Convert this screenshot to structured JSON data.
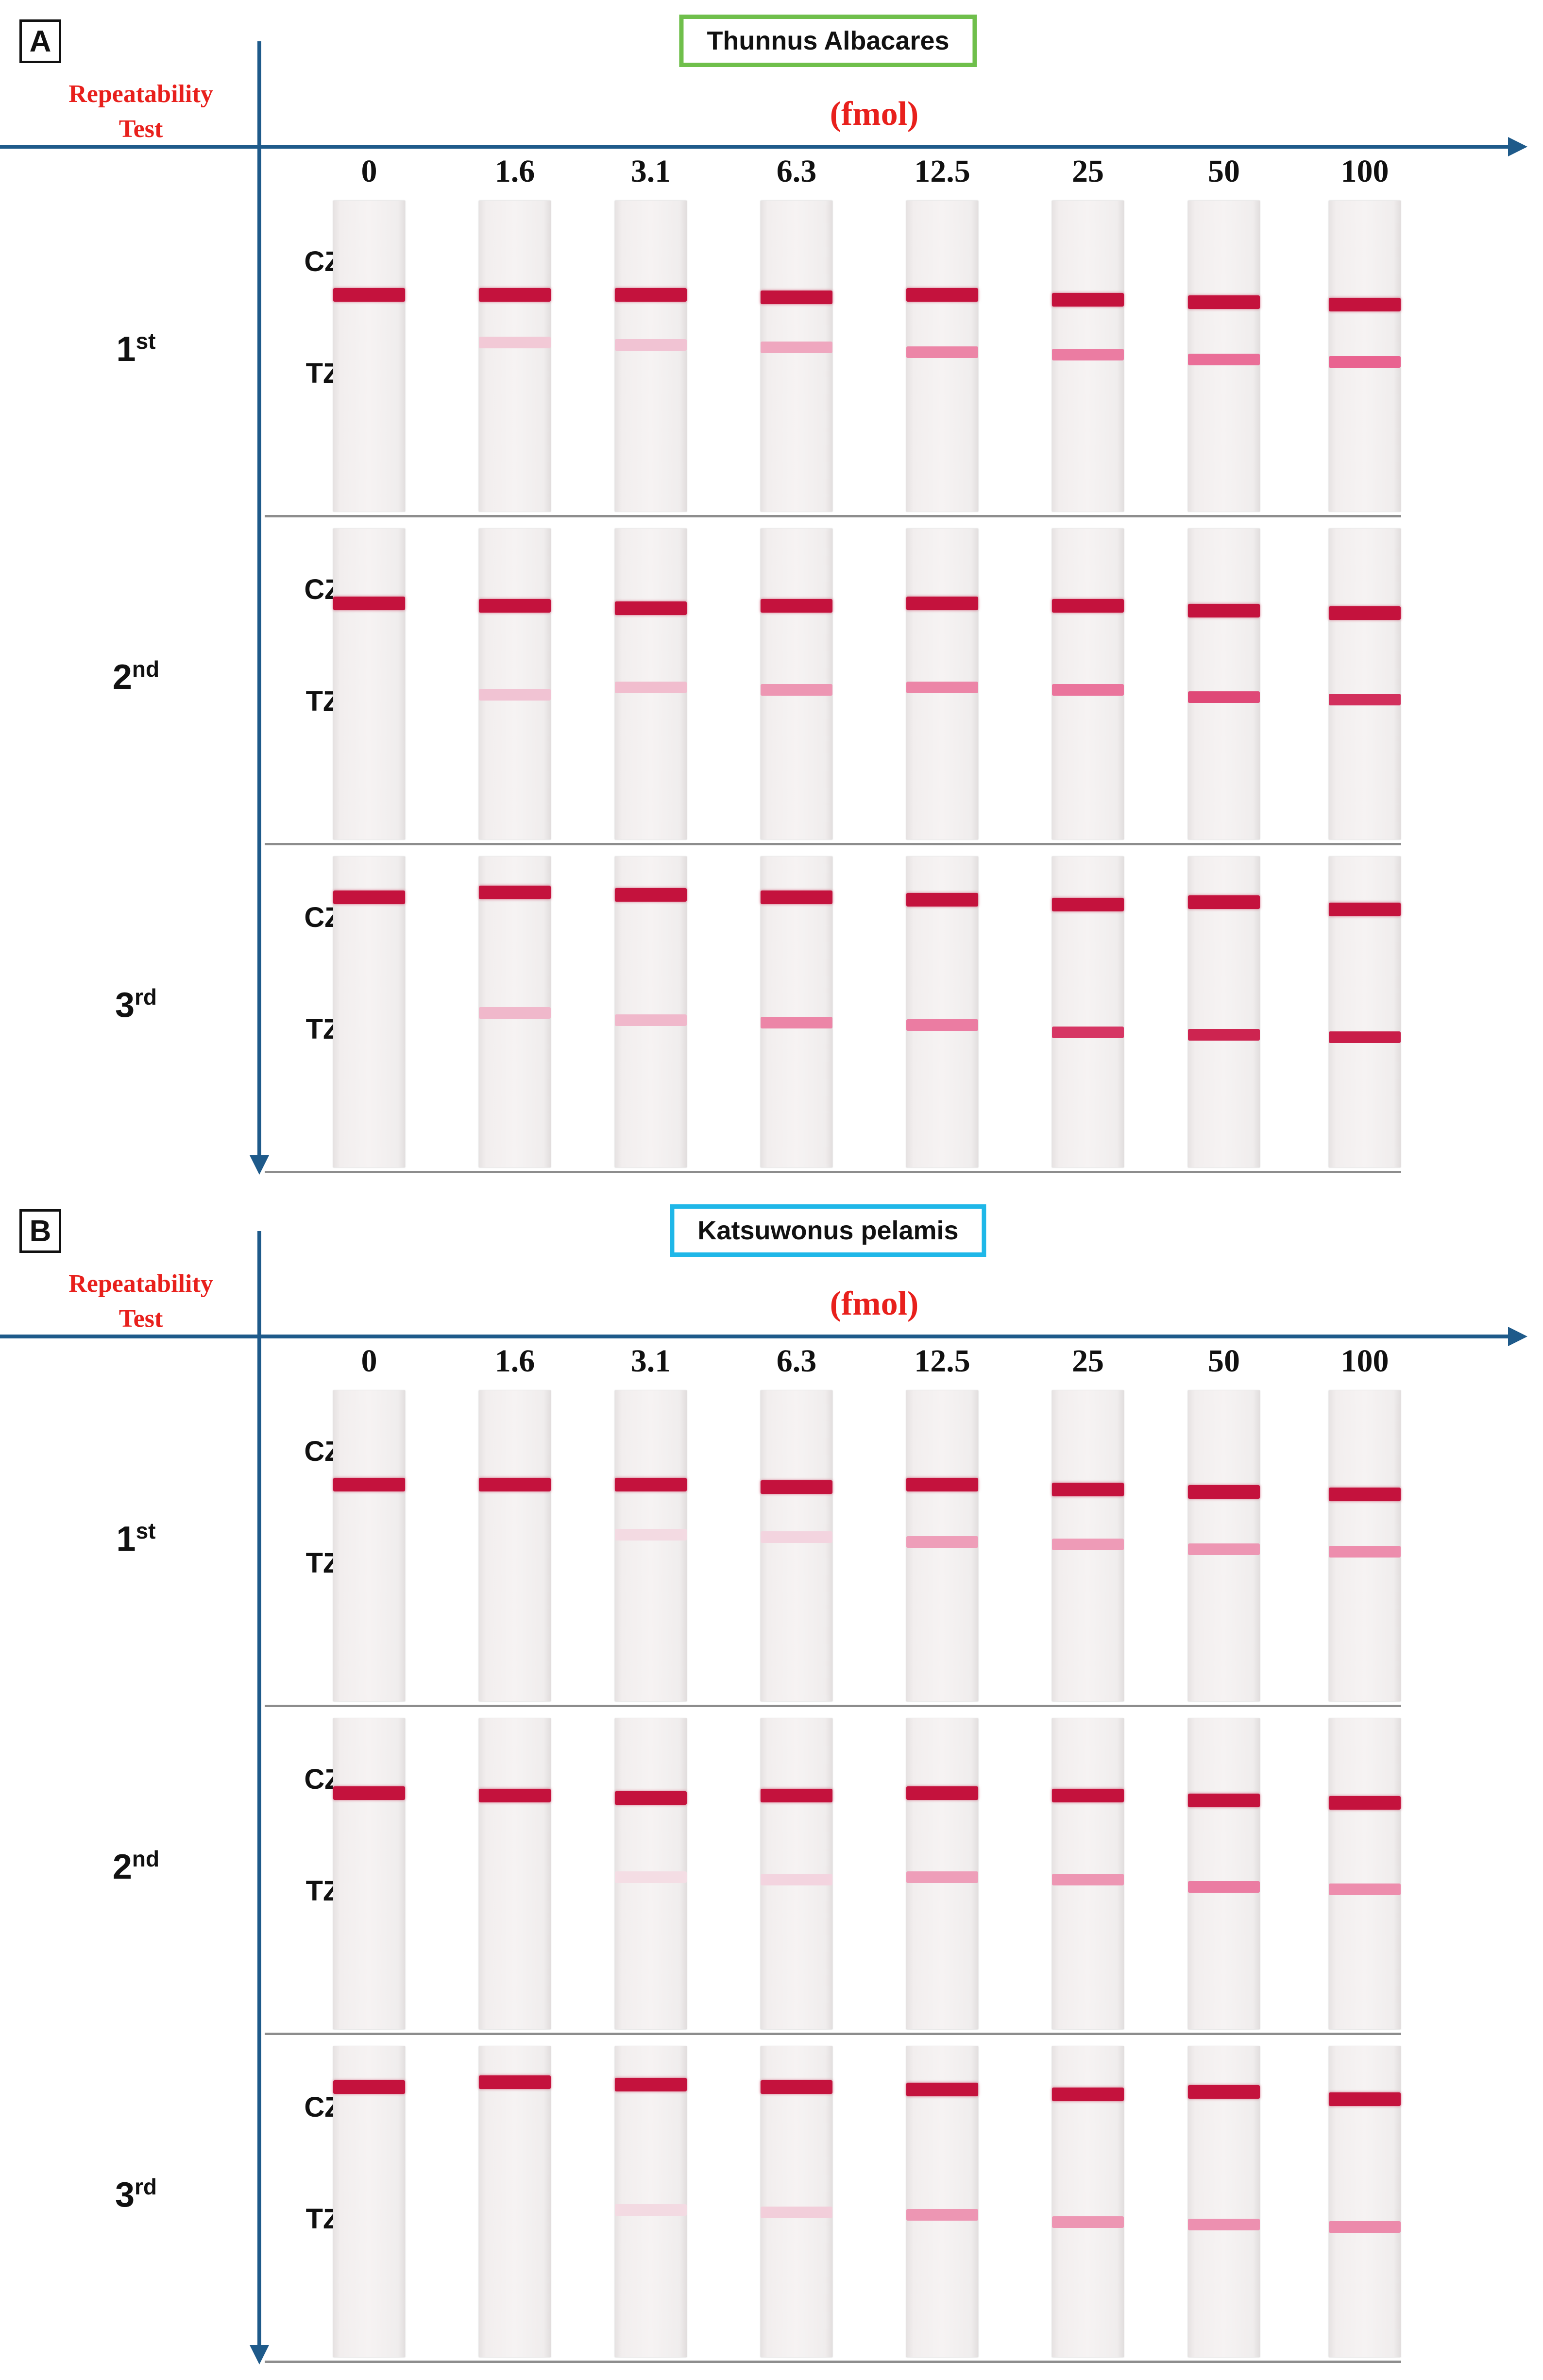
{
  "concentration_unit": "(fmol)",
  "concentrations": [
    "0",
    "1.6",
    "3.1",
    "6.3",
    "12.5",
    "25",
    "50",
    "100"
  ],
  "zone_labels": {
    "control": "CZ",
    "test": "TZ"
  },
  "row_title": "Repeatability Test",
  "colors": {
    "axis": "#1e5a8a",
    "title_red": "#e8201c",
    "band_dark": "#c4123d",
    "band_light": "#e85a8a",
    "box_green": "#6fbf4b",
    "box_blue": "#1fb7e8"
  },
  "panels": [
    {
      "letter": "A",
      "species": "Thunnus Albacares",
      "rows": [
        {
          "ordinal": "1",
          "suffix": "st",
          "test_band_intensity": [
            0,
            0.15,
            0.18,
            0.35,
            0.55,
            0.6,
            0.68,
            0.75
          ]
        },
        {
          "ordinal": "2",
          "suffix": "nd",
          "test_band_intensity": [
            0,
            0.18,
            0.22,
            0.45,
            0.55,
            0.65,
            0.85,
            0.92
          ]
        },
        {
          "ordinal": "3",
          "suffix": "rd",
          "test_band_intensity": [
            0,
            0.25,
            0.25,
            0.55,
            0.6,
            0.9,
            0.95,
            0.97
          ]
        }
      ]
    },
    {
      "letter": "B",
      "species": "Katsuwonus pelamis",
      "rows": [
        {
          "ordinal": "1",
          "suffix": "st",
          "test_band_intensity": [
            0,
            0,
            0.05,
            0.08,
            0.4,
            0.42,
            0.45,
            0.5
          ]
        },
        {
          "ordinal": "2",
          "suffix": "nd",
          "test_band_intensity": [
            0,
            0,
            0.03,
            0.08,
            0.4,
            0.45,
            0.6,
            0.5
          ]
        },
        {
          "ordinal": "3",
          "suffix": "rd",
          "test_band_intensity": [
            0,
            0,
            0.05,
            0.12,
            0.45,
            0.45,
            0.48,
            0.52
          ]
        }
      ]
    }
  ]
}
